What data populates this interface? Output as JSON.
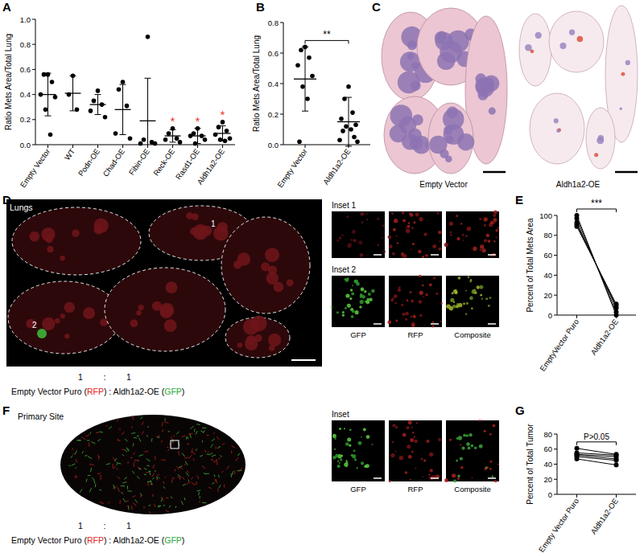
{
  "panel_letters": [
    "A",
    "B",
    "C",
    "D",
    "E",
    "F",
    "G"
  ],
  "chart_data": [
    {
      "type": "dot",
      "y_label": "Ratio Mets Area/Total Lung",
      "categories": [
        "Empty Vector",
        "WT",
        "Podn-OE",
        "Chad-OE",
        "Fibin-OE",
        "Reck-OE",
        "Rasd1-OE",
        "Aldh1a2-OE"
      ],
      "values": [
        [
          0.56,
          0.56,
          0.5,
          0.4,
          0.38,
          0.28,
          0.08
        ],
        [
          0.55,
          0.4,
          0.28
        ],
        [
          0.43,
          0.35,
          0.32,
          0.27,
          0.22
        ],
        [
          0.5,
          0.44,
          0.31,
          0.09,
          0.05
        ],
        [
          0.86,
          0.04,
          0.02,
          0.01,
          0.01
        ],
        [
          0.13,
          0.09,
          0.05,
          0.04,
          0.02
        ],
        [
          0.13,
          0.09,
          0.07,
          0.07,
          0.04,
          0.01
        ],
        [
          0.18,
          0.14,
          0.11,
          0.08,
          0.05,
          0.04,
          0.03
        ]
      ],
      "mean": [
        0.4,
        0.41,
        0.32,
        0.28,
        0.19,
        0.07,
        0.07,
        0.09
      ],
      "error": [
        0.17,
        0.14,
        0.08,
        0.2,
        0.34,
        0.05,
        0.06,
        0.06
      ],
      "ylim": [
        0,
        1
      ],
      "yticks": [
        {
          "value": 0,
          "label": "0.0"
        },
        {
          "value": 0.2,
          "label": "0.2"
        },
        {
          "value": 0.4,
          "label": "0.4"
        },
        {
          "value": 0.6,
          "label": "0.6"
        },
        {
          "value": 0.8,
          "label": "0.8"
        },
        {
          "value": 1,
          "label": "1.0"
        }
      ],
      "color": "#000000",
      "annotations": [
        {
          "category": "Reck-OE",
          "text": "*",
          "color": "#e8312b"
        },
        {
          "category": "Rasd1-OE",
          "text": "*",
          "color": "#e8312b"
        },
        {
          "category": "Aldh1a2-OE",
          "text": "*",
          "color": "#e8312b"
        }
      ]
    },
    {
      "type": "dot",
      "y_label": "Ratio Mets Area/Total Lung",
      "categories": [
        "Empty Vector",
        "Aldh1a2-OE"
      ],
      "values": [
        [
          0.64,
          0.62,
          0.57,
          0.52,
          0.45,
          0.38,
          0.3,
          0.02
        ],
        [
          0.38,
          0.3,
          0.21,
          0.17,
          0.13,
          0.12,
          0.1,
          0.09,
          0.05,
          0.03,
          0.02
        ]
      ],
      "mean": [
        0.43,
        0.15
      ],
      "error": [
        0.21,
        0.16
      ],
      "ylim": [
        0,
        0.8
      ],
      "yticks": [
        {
          "value": 0,
          "label": "0.0"
        },
        {
          "value": 0.2,
          "label": "0.2"
        },
        {
          "value": 0.4,
          "label": "0.4"
        },
        {
          "value": 0.6,
          "label": "0.6"
        },
        {
          "value": 0.8,
          "label": "0.8"
        }
      ],
      "color": "#000000",
      "annotations": [
        {
          "text": "**",
          "between": [
            "Empty Vector",
            "Aldh1a2-OE"
          ],
          "color": "#000000"
        }
      ]
    },
    {
      "type": "paired",
      "y_label": "Percent of Total Mets Area",
      "categories": [
        "EmptyVector Puro",
        "Aldh1a2-OE"
      ],
      "values": [
        [
          100,
          97,
          93,
          91,
          89
        ],
        [
          0,
          3,
          7,
          9,
          11
        ]
      ],
      "ylim": [
        0,
        100
      ],
      "yticks": [
        0,
        20,
        40,
        60,
        80,
        100
      ],
      "color": "#000000",
      "annotations": [
        {
          "text": "***",
          "between": [
            "EmptyVector Puro",
            "Aldh1a2-OE"
          ],
          "color": "#000000"
        }
      ]
    },
    {
      "type": "paired",
      "y_label": "Percent of Total Tumor",
      "categories": [
        "Empty Vector Puro",
        "Aldh1a2-OE"
      ],
      "values": [
        [
          61,
          55,
          53,
          52,
          50,
          47
        ],
        [
          53,
          52,
          50,
          47,
          45,
          39
        ]
      ],
      "ylim": [
        0,
        80
      ],
      "yticks": [
        0,
        20,
        40,
        60,
        80
      ],
      "color": "#000000",
      "annotations": [
        {
          "text": "P>0.05",
          "between": [
            "Empty Vector Puro",
            "Aldh1a2-OE"
          ],
          "color": "#000000"
        }
      ]
    }
  ],
  "images": {
    "C": {
      "labels": [
        "Empty Vector",
        "Aldh1a2-OE"
      ]
    },
    "D": {
      "title": "Lungs",
      "regions": [
        "1",
        "2"
      ],
      "insets": [
        "Inset 1",
        "Inset 2"
      ],
      "channels": [
        "GFP",
        "RFP",
        "Composite"
      ],
      "ratio": [
        "1",
        ":",
        "1"
      ],
      "caption": [
        {
          "text": "Empty Vector Puro (",
          "color": "#000000"
        },
        {
          "text": "RFP",
          "color": "#e2231a"
        },
        {
          "text": ") : Aldh1a2-OE (",
          "color": "#000000"
        },
        {
          "text": "GFP",
          "color": "#2fa83a"
        },
        {
          "text": ")",
          "color": "#000000"
        }
      ]
    },
    "F": {
      "title": "Primary Site",
      "insets": [
        "Inset"
      ],
      "channels": [
        "GFP",
        "RFP",
        "Composite"
      ],
      "ratio": [
        "1",
        ":",
        "1"
      ],
      "caption": [
        {
          "text": "Empty Vector Puro (",
          "color": "#000000"
        },
        {
          "text": "RFP",
          "color": "#e2231a"
        },
        {
          "text": ") : Aldh1a2-OE (",
          "color": "#000000"
        },
        {
          "text": "GFP",
          "color": "#2fa83a"
        },
        {
          "text": ")",
          "color": "#000000"
        }
      ]
    }
  }
}
